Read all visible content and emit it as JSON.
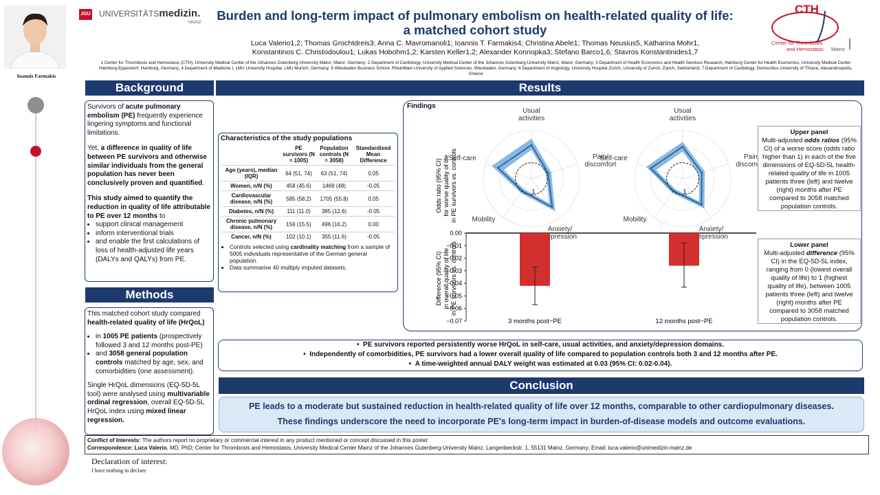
{
  "presenter": {
    "name": "Ioannis Farmakis"
  },
  "logo_uni": {
    "jgu": "JGU",
    "text_a": "UNIVERSITÄTS",
    "text_b": "medizin.",
    "text_c": "MAINZ"
  },
  "logo_cth": {
    "big": "CTH",
    "line1": "Center for Thrombosis",
    "line2": "and Hemostasis",
    "place": "Mainz"
  },
  "title": {
    "line1": "Burden and long-term impact of pulmonary embolism on health-related quality of life:",
    "line2": "a matched cohort study"
  },
  "authors": {
    "line1": "Luca Valerio1,2; Thomas Grochtdreis3; Anna C. Mavromanoli1; Ioannis T. Farmakis4; Christina Abele1; Thomas Neusius5, Katharina Mohr1,",
    "line2": "Konstantinos C. Christodoulou1; Lukas Hobohm1,2; Karsten Keller1,2; Alexander Konnopka3; Stefano Barco1,6; Stavros Konstantinides1,7"
  },
  "affiliations": "1 Center for Thrombosis and Hemostasis (CTH), University Medical Center of the Johannes Gutenberg-University Mainz, Mainz, Germany; 2 Department of Cardiology, University Medical Center of the Johannes Gutenberg-University Mainz, Mainz, Germany; 3 Department of Health Economics and Health Services Research, Hamburg Center for Health Economics, University Medical Center Hamburg-Eppendorf, Hamburg, Germany; 4 Department of Medicine I, LMU University Hospital, LMU Munich, Germany; 5 Wiesbaden Business School, RheinMain University of Applied Sciences, Wiesbaden, Germany; 6 Department of Angiology, University Hospital Zurich, University of Zurich, Zurich, Switzerland; 7 Department of Cardiology, Democritus University of Thrace, Alexandroupolis, Greece",
  "background": {
    "header": "Background",
    "p1_a": "Survivors of ",
    "p1_b": "acute pulmonary embolism (PE)",
    "p1_c": " frequently experience lingering symptoms and functional limitations.",
    "p2_a": "Yet, ",
    "p2_b": "a difference in quality of life between PE survivors and otherwise similar individuals from the general population has never been conclusively proven and quantified",
    "p2_c": ".",
    "p3_b": "This study aimed to quantify the reduction in quality of life attributable to PE over 12 months",
    "p3_c": " to",
    "bullets": [
      "support clinical management",
      "inform interventional trials",
      "and enable the first calculations of loss of health-adjusted life years (DALYs and QALYs) from PE."
    ]
  },
  "methods": {
    "header": "Methods",
    "p1_a": "This matched cohort study compared ",
    "p1_b": "health-related quality of life (HrQoL)",
    "b1_a": "in ",
    "b1_b": "1005 PE patients",
    "b1_c": " (prospectively followed 3 and 12 months post-PE)",
    "b2_a": "and ",
    "b2_b": "3058 general population controls",
    "b2_c": " matched by age, sex, and comorbidities (one assessment).",
    "p2_a": "Single HrQoL dimensions (EQ-5D-5L tool) were analysed using ",
    "p2_b": "multivariable ordinal regression",
    "p2_c": ", overall EQ-5D-5L HrQoL index using ",
    "p2_d": "mixed linear regression."
  },
  "results": {
    "header": "Results"
  },
  "table": {
    "title": "Characteristics of the study populations",
    "col1": "PE survivors (N = 1005)",
    "col2": "Population controls (N = 3058)",
    "col3": "Standardised Mean Difference",
    "rows": [
      {
        "label": "Age (years), median (IQR)",
        "pe": "64 (51, 74)",
        "pop": "63 (51, 74)",
        "smd": "0.05"
      },
      {
        "label": "Women, n/N (%)",
        "pe": "458 (45.6)",
        "pop": "1469 (48)",
        "smd": "-0.05"
      },
      {
        "label": "Cardiovascular disease, n/N (%)",
        "pe": "585 (58.2)",
        "pop": "1705 (55.8)",
        "smd": "0.05"
      },
      {
        "label": "Diabetes, n/N (%)",
        "pe": "111 (11.0)",
        "pop": "385 (12.6)",
        "smd": "-0.05"
      },
      {
        "label": "Chronic pulmonary disease, n/N (%)",
        "pe": "156 (15.5)",
        "pop": "496 (16.2)",
        "smd": "0.00"
      },
      {
        "label": "Cancer, n/N (%)",
        "pe": "102 (10.1)",
        "pop": "355 (11.6)",
        "smd": "-0.05"
      }
    ],
    "note1_a": "Controls selected using ",
    "note1_b": "cardinality matching",
    "note1_c": " from a sample of 5005 individuals representative of the German general population.",
    "note2": "Data summarise 40 multiply imputed datasets."
  },
  "findings": {
    "title": "Findings",
    "radar_ylabel_1": "Odds ratio (95% CI)",
    "radar_ylabel_2": "for worse quality of life",
    "radar_ylabel_3": "in PE survivors vs. controls",
    "bar_ylabel_1": "Difference (95% CI)",
    "bar_ylabel_2": "in overall quality of life",
    "bar_ylabel_3": "in PE survivors vs. controls",
    "upper_title": "Upper panel",
    "upper_a": "Multi-adjusted ",
    "upper_b": "odds ratios",
    "upper_c": " (95% CI) of a worse score (odds ratio higher than 1) in each of the five dimensions of EQ-5D-5L health-related quality of life in 1005 patients three (left) and twelve (right) months after PE compared to 3058 matched population controls.",
    "lower_title": "Lower panel",
    "lower_a": "Multi-adjusted ",
    "lower_b": "difference",
    "lower_c": " (95% CI) in the EQ-5D-5L index, ranging from 0 (lowest overall quality of life) to 1 (highest quality of life), between 1005 patients three (left) and twelve (right) months after PE compared to 3058 matched population controls."
  },
  "chart_data": [
    {
      "type": "radar",
      "panel": "3 months post-PE",
      "axes": [
        "Usual activities",
        "Pain/ discomfort",
        "Anxiety/ depression",
        "Mobility",
        "Self-care"
      ],
      "reference_label": "1",
      "series": [
        {
          "values": [
            2.1,
            1.1,
            2.2,
            0.95,
            2.2
          ],
          "ci_low": [
            1.8,
            0.95,
            1.9,
            0.8,
            1.8
          ],
          "ci_high": [
            2.5,
            1.3,
            2.5,
            1.1,
            2.6
          ]
        }
      ]
    },
    {
      "type": "radar",
      "panel": "12 months post-PE",
      "axes": [
        "Usual activities",
        "Pain/ discomfort",
        "Anxiety/ depression",
        "Mobility",
        "Self-care"
      ],
      "reference_label": "1",
      "series": [
        {
          "values": [
            2.0,
            1.25,
            2.0,
            0.95,
            2.1
          ],
          "ci_low": [
            1.7,
            1.05,
            1.75,
            0.8,
            1.75
          ],
          "ci_high": [
            2.3,
            1.45,
            2.3,
            1.1,
            2.4
          ]
        }
      ]
    },
    {
      "type": "bar",
      "categories": [
        "3 months post−PE",
        "12 months post−PE"
      ],
      "values": [
        -0.042,
        -0.026
      ],
      "ci_low": [
        -0.057,
        -0.043
      ],
      "ci_high": [
        -0.027,
        -0.008
      ],
      "ylim": [
        -0.07,
        0.0
      ],
      "yticks": [
        "0.00",
        "−0.01",
        "−0.02",
        "−0.03",
        "−0.04",
        "−0.05",
        "−0.06",
        "−0.07"
      ],
      "bar_color": "#d32f2f"
    }
  ],
  "summary": [
    "PE survivors reported persistently worse HrQoL in self-care, usual activities, and anxiety/depression domains.",
    "Independently of comorbidities, PE survivors had a lower overall quality of life compared to population controls both 3 and 12 months after PE.",
    "A time-weighted annual DALY weight was estimated at 0.03 (95% CI: 0.02-0.04)."
  ],
  "conclusion": {
    "header": "Conclusion",
    "line1": "PE leads to a moderate but sustained reduction in health-related quality of life over 12 months, comparable to other cardiopulmonary diseases.",
    "line2": "These findings underscore the need to incorporate PE's long-term impact in burden-of-disease models and outcome evaluations."
  },
  "footer": {
    "coi_label": "Conflict of Interests:",
    "coi_text": " The authors report no proprietary or commercial interest in any product mentioned or concept discussed in this poster.",
    "corr_label": "Correspondence: Luca Valerio",
    "corr_text": ", MD, PhD; Center for Thrombosis and Hemostasis, University Medical Center Mainz of the Johannes Gutenberg-University Mainz, Langenbeckstr. 1, 55131 Mainz, Germany; Email: luca.valerio@unimedizin-mainz.de"
  },
  "declaration": {
    "title": "Declaration of interest:",
    "text": "I have nothing to declare"
  },
  "colors": {
    "navy": "#1c3a6e",
    "red_bar": "#d32f2f",
    "radar_blue": "#2a7fc9"
  }
}
